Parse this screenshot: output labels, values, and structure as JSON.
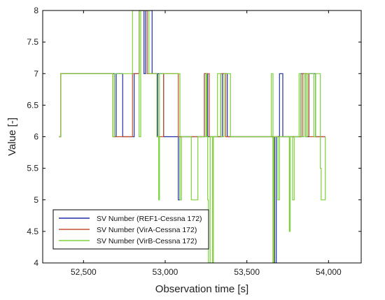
{
  "chart_data": {
    "type": "line",
    "xlabel": "Observation time [s]",
    "ylabel": "Value [-]",
    "xlim": [
      52250,
      54200
    ],
    "ylim": [
      4,
      8
    ],
    "x_ticks": [
      52500,
      53000,
      53500,
      54000
    ],
    "x_tick_labels": [
      "52,500",
      "53,000",
      "53,500",
      "54,000"
    ],
    "y_ticks": [
      4,
      4.5,
      5,
      5.5,
      6,
      6.5,
      7,
      7.5,
      8
    ],
    "y_tick_labels": [
      "4",
      "4.5",
      "5",
      "5.5",
      "6",
      "6.5",
      "7",
      "7.5",
      "8"
    ],
    "grid": false,
    "legend_position": "bottom-left",
    "series": [
      {
        "name": "SV Number (REF1-Cessna 172)",
        "color": "#1f2fa6",
        "points": [
          [
            52350,
            6
          ],
          [
            52360,
            6
          ],
          [
            52360,
            7
          ],
          [
            52690,
            7
          ],
          [
            52690,
            6
          ],
          [
            52700,
            6
          ],
          [
            52700,
            7
          ],
          [
            52740,
            7
          ],
          [
            52740,
            6
          ],
          [
            52810,
            6
          ],
          [
            52810,
            7
          ],
          [
            52840,
            7
          ],
          [
            52840,
            8
          ],
          [
            52870,
            8
          ],
          [
            52870,
            7
          ],
          [
            52880,
            7
          ],
          [
            52880,
            8
          ],
          [
            52920,
            8
          ],
          [
            52920,
            7
          ],
          [
            52950,
            7
          ],
          [
            52950,
            6
          ],
          [
            52955,
            6
          ],
          [
            52955,
            7
          ],
          [
            52990,
            7
          ],
          [
            52990,
            6
          ],
          [
            53080,
            6
          ],
          [
            53080,
            5
          ],
          [
            53090,
            5
          ],
          [
            53090,
            6
          ],
          [
            53240,
            6
          ],
          [
            53240,
            7
          ],
          [
            53260,
            7
          ],
          [
            53260,
            6
          ],
          [
            53350,
            6
          ],
          [
            53350,
            7
          ],
          [
            53380,
            7
          ],
          [
            53380,
            6
          ],
          [
            53670,
            6
          ],
          [
            53670,
            4
          ],
          [
            53680,
            4
          ],
          [
            53680,
            6
          ],
          [
            53700,
            6
          ],
          [
            53700,
            7
          ],
          [
            53720,
            7
          ],
          [
            53720,
            6
          ],
          [
            53830,
            6
          ],
          [
            53830,
            7
          ],
          [
            53860,
            7
          ],
          [
            53860,
            6
          ],
          [
            53880,
            6
          ],
          [
            53880,
            7
          ],
          [
            53920,
            7
          ],
          [
            53920,
            6
          ],
          [
            53980,
            6
          ]
        ]
      },
      {
        "name": "SV Number (VirA-Cessna 172)",
        "color": "#c0502a",
        "points": [
          [
            52350,
            6
          ],
          [
            52360,
            6
          ],
          [
            52360,
            7
          ],
          [
            52680,
            7
          ],
          [
            52680,
            6
          ],
          [
            52740,
            6
          ],
          [
            52740,
            6
          ],
          [
            52800,
            6
          ],
          [
            52800,
            7
          ],
          [
            52840,
            7
          ],
          [
            52840,
            8
          ],
          [
            52890,
            8
          ],
          [
            52890,
            7
          ],
          [
            52950,
            7
          ],
          [
            52950,
            6
          ],
          [
            52990,
            6
          ],
          [
            52990,
            7
          ],
          [
            53080,
            7
          ],
          [
            53080,
            6
          ],
          [
            53090,
            6
          ],
          [
            53240,
            6
          ],
          [
            53240,
            7
          ],
          [
            53270,
            7
          ],
          [
            53270,
            6
          ],
          [
            53340,
            6
          ],
          [
            53340,
            7
          ],
          [
            53370,
            7
          ],
          [
            53370,
            6
          ],
          [
            53660,
            6
          ],
          [
            53660,
            4
          ],
          [
            53665,
            4
          ],
          [
            53665,
            6
          ],
          [
            53840,
            6
          ],
          [
            53840,
            7
          ],
          [
            53880,
            7
          ],
          [
            53880,
            6
          ],
          [
            53980,
            6
          ]
        ]
      },
      {
        "name": "SV Number (VirB-Cessna 172)",
        "color": "#7cd23a",
        "points": [
          [
            52350,
            6
          ],
          [
            52360,
            6
          ],
          [
            52360,
            7
          ],
          [
            52680,
            7
          ],
          [
            52680,
            6
          ],
          [
            52690,
            6
          ],
          [
            52690,
            7
          ],
          [
            52800,
            7
          ],
          [
            52800,
            8
          ],
          [
            52840,
            8
          ],
          [
            52840,
            6
          ],
          [
            52850,
            6
          ],
          [
            52850,
            8
          ],
          [
            52900,
            8
          ],
          [
            52900,
            7
          ],
          [
            52950,
            7
          ],
          [
            52950,
            6
          ],
          [
            52960,
            6
          ],
          [
            52960,
            5
          ],
          [
            52965,
            5
          ],
          [
            52965,
            7
          ],
          [
            53090,
            7
          ],
          [
            53090,
            5
          ],
          [
            53100,
            5
          ],
          [
            53100,
            6
          ],
          [
            53160,
            6
          ],
          [
            53160,
            5
          ],
          [
            53200,
            5
          ],
          [
            53200,
            6
          ],
          [
            53250,
            6
          ],
          [
            53250,
            7
          ],
          [
            53255,
            7
          ],
          [
            53255,
            6
          ],
          [
            53260,
            6
          ],
          [
            53260,
            5
          ],
          [
            53265,
            5
          ],
          [
            53265,
            4
          ],
          [
            53275,
            4
          ],
          [
            53275,
            6
          ],
          [
            53290,
            6
          ],
          [
            53290,
            4
          ],
          [
            53295,
            4
          ],
          [
            53295,
            6
          ],
          [
            53320,
            6
          ],
          [
            53320,
            7
          ],
          [
            53340,
            7
          ],
          [
            53340,
            6
          ],
          [
            53360,
            6
          ],
          [
            53360,
            7
          ],
          [
            53400,
            7
          ],
          [
            53400,
            6
          ],
          [
            53650,
            6
          ],
          [
            53650,
            7
          ],
          [
            53660,
            7
          ],
          [
            53660,
            4
          ],
          [
            53665,
            4
          ],
          [
            53665,
            6
          ],
          [
            53690,
            6
          ],
          [
            53690,
            5
          ],
          [
            53700,
            5
          ],
          [
            53700,
            6
          ],
          [
            53760,
            6
          ],
          [
            53760,
            4.5
          ],
          [
            53765,
            4.5
          ],
          [
            53765,
            6
          ],
          [
            53780,
            6
          ],
          [
            53780,
            5
          ],
          [
            53790,
            5
          ],
          [
            53790,
            6
          ],
          [
            53820,
            6
          ],
          [
            53820,
            7
          ],
          [
            53830,
            7
          ],
          [
            53830,
            6
          ],
          [
            53850,
            6
          ],
          [
            53850,
            7
          ],
          [
            53860,
            7
          ],
          [
            53860,
            6
          ],
          [
            53870,
            6
          ],
          [
            53870,
            7
          ],
          [
            53910,
            7
          ],
          [
            53910,
            6
          ],
          [
            53920,
            6
          ],
          [
            53920,
            7
          ],
          [
            53950,
            7
          ],
          [
            53950,
            5.5
          ],
          [
            53955,
            5.5
          ],
          [
            53955,
            5
          ],
          [
            53980,
            5
          ],
          [
            53980,
            6
          ]
        ]
      }
    ]
  }
}
